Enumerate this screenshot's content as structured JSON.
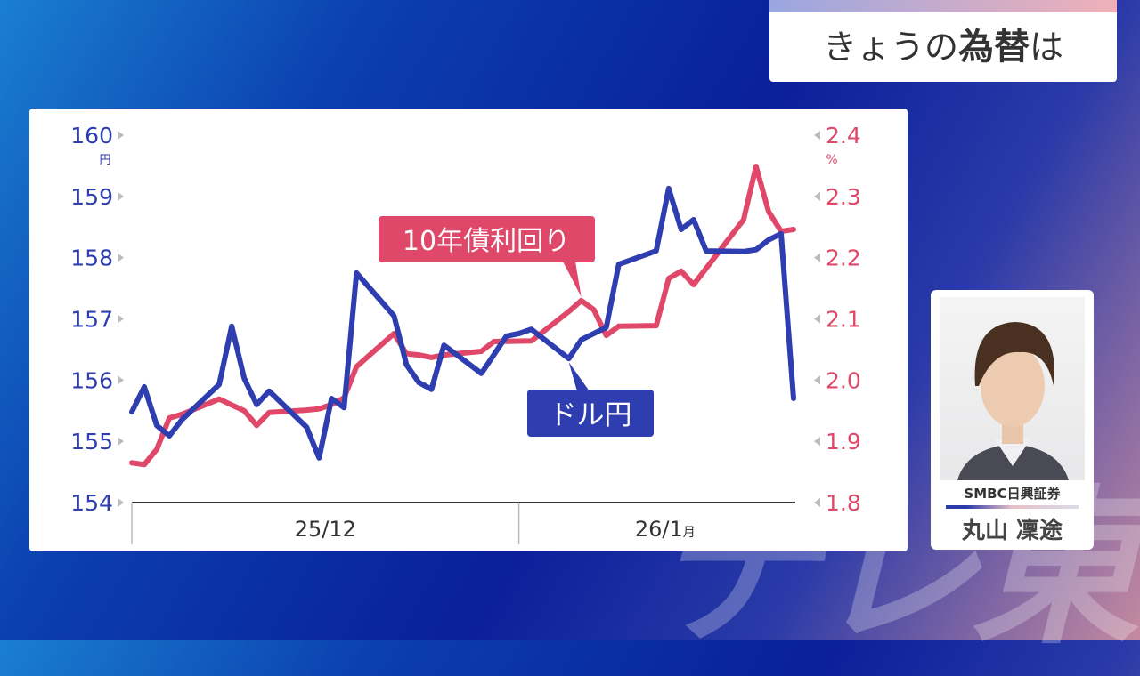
{
  "watermark": "テレ東",
  "title": {
    "prefix": "きょうの",
    "bold": "為替",
    "suffix": "は"
  },
  "presenter": {
    "company": "SMBC日興証券",
    "name": "丸山 凜途"
  },
  "colors": {
    "usdjpy": "#2e3db0",
    "yield": "#e0486a",
    "axis": "#333333",
    "marker": "#bbbbbb"
  },
  "chart_data": {
    "type": "line",
    "x_tick_labels": [
      "25/12",
      "26/1"
    ],
    "x_tick_suffix": "月",
    "left_axis": {
      "unit": "円",
      "ticks": [
        154,
        155,
        156,
        157,
        158,
        159,
        160
      ],
      "ylim": [
        154,
        160
      ]
    },
    "right_axis": {
      "unit": "%",
      "ticks": [
        "1.8",
        "1.9",
        "2.0",
        "2.1",
        "2.2",
        "2.3",
        "2.4"
      ],
      "ylim": [
        1.8,
        2.4
      ]
    },
    "xlim": [
      "2025-12-01",
      "2026-01-23"
    ],
    "grid": false,
    "series": [
      {
        "name": "ドル円",
        "axis": "left",
        "color": "#2e3db0",
        "points": [
          [
            "2025-12-01",
            155.48
          ],
          [
            "2025-12-02",
            155.89
          ],
          [
            "2025-12-03",
            155.26
          ],
          [
            "2025-12-04",
            155.09
          ],
          [
            "2025-12-05",
            155.35
          ],
          [
            "2025-12-08",
            155.93
          ],
          [
            "2025-12-09",
            156.88
          ],
          [
            "2025-12-10",
            156.03
          ],
          [
            "2025-12-11",
            155.6
          ],
          [
            "2025-12-12",
            155.82
          ],
          [
            "2025-12-15",
            155.23
          ],
          [
            "2025-12-16",
            154.73
          ],
          [
            "2025-12-17",
            155.7
          ],
          [
            "2025-12-18",
            155.55
          ],
          [
            "2025-12-19",
            157.75
          ],
          [
            "2025-12-22",
            157.05
          ],
          [
            "2025-12-23",
            156.25
          ],
          [
            "2025-12-24",
            155.96
          ],
          [
            "2025-12-25",
            155.85
          ],
          [
            "2025-12-26",
            156.57
          ],
          [
            "2025-12-29",
            156.11
          ],
          [
            "2025-12-31",
            156.72
          ],
          [
            "2026-01-01",
            156.76
          ],
          [
            "2026-01-02",
            156.83
          ],
          [
            "2026-01-05",
            156.35
          ],
          [
            "2026-01-06",
            156.66
          ],
          [
            "2026-01-08",
            156.86
          ],
          [
            "2026-01-09",
            157.89
          ],
          [
            "2026-01-12",
            158.11
          ],
          [
            "2026-01-13",
            159.13
          ],
          [
            "2026-01-14",
            158.46
          ],
          [
            "2026-01-15",
            158.62
          ],
          [
            "2026-01-16",
            158.11
          ],
          [
            "2026-01-19",
            158.1
          ],
          [
            "2026-01-20",
            158.13
          ],
          [
            "2026-01-21",
            158.29
          ],
          [
            "2026-01-22",
            158.39
          ],
          [
            "2026-01-23",
            155.7
          ]
        ]
      },
      {
        "name": "10年債利回り",
        "axis": "right",
        "color": "#e0486a",
        "points": [
          [
            "2025-12-01",
            1.865
          ],
          [
            "2025-12-02",
            1.862
          ],
          [
            "2025-12-03",
            1.887
          ],
          [
            "2025-12-04",
            1.938
          ],
          [
            "2025-12-05",
            1.944
          ],
          [
            "2025-12-08",
            1.969
          ],
          [
            "2025-12-10",
            1.95
          ],
          [
            "2025-12-11",
            1.926
          ],
          [
            "2025-12-12",
            1.947
          ],
          [
            "2025-12-15",
            1.951
          ],
          [
            "2025-12-16",
            1.953
          ],
          [
            "2025-12-17",
            1.96
          ],
          [
            "2025-12-18",
            1.971
          ],
          [
            "2025-12-19",
            2.022
          ],
          [
            "2025-12-22",
            2.076
          ],
          [
            "2025-12-23",
            2.043
          ],
          [
            "2025-12-24",
            2.041
          ],
          [
            "2025-12-25",
            2.037
          ],
          [
            "2025-12-26",
            2.041
          ],
          [
            "2025-12-29",
            2.047
          ],
          [
            "2025-12-30",
            2.063
          ],
          [
            "2026-01-02",
            2.064
          ],
          [
            "2026-01-05",
            2.112
          ],
          [
            "2026-01-06",
            2.13
          ],
          [
            "2026-01-07",
            2.115
          ],
          [
            "2026-01-08",
            2.073
          ],
          [
            "2026-01-09",
            2.088
          ],
          [
            "2026-01-12",
            2.089
          ],
          [
            "2026-01-13",
            2.166
          ],
          [
            "2026-01-14",
            2.178
          ],
          [
            "2026-01-15",
            2.156
          ],
          [
            "2026-01-19",
            2.262
          ],
          [
            "2026-01-20",
            2.349
          ],
          [
            "2026-01-21",
            2.275
          ],
          [
            "2026-01-22",
            2.243
          ],
          [
            "2026-01-23",
            2.246
          ]
        ]
      }
    ],
    "annotations": [
      {
        "text": "10年債利回り",
        "series": "10年債利回り",
        "date": "2026-01-06"
      },
      {
        "text": "ドル円",
        "series": "ドル円",
        "date": "2026-01-05"
      }
    ]
  }
}
